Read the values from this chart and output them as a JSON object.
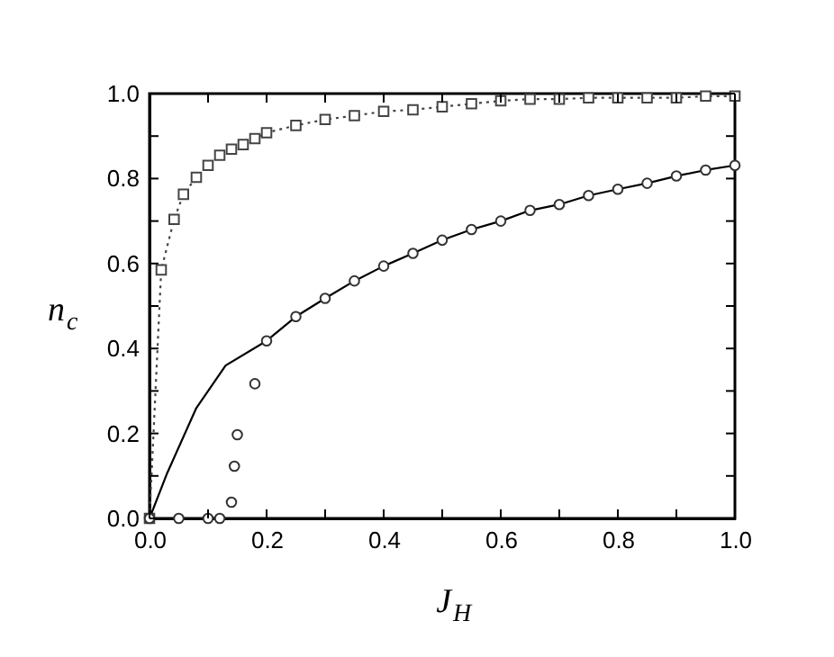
{
  "chart_data": {
    "type": "line",
    "xlabel": "J$_{H}$",
    "ylabel": "n$_{c}$",
    "xlim": [
      0,
      1.0
    ],
    "ylim": [
      0,
      1.0
    ],
    "xticks": [
      {
        "value": 0,
        "label": "0.0"
      },
      {
        "value": 0.1,
        "label": null
      },
      {
        "value": 0.2,
        "label": "0.2"
      },
      {
        "value": 0.3,
        "label": null
      },
      {
        "value": 0.4,
        "label": "0.4"
      },
      {
        "value": 0.5,
        "label": null
      },
      {
        "value": 0.6,
        "label": "0.6"
      },
      {
        "value": 0.7,
        "label": null
      },
      {
        "value": 0.8,
        "label": "0.8"
      },
      {
        "value": 0.9,
        "label": null
      },
      {
        "value": 1.0,
        "label": "1.0"
      }
    ],
    "yticks": [
      {
        "value": 0,
        "label": "0.0"
      },
      {
        "value": 0.1,
        "label": null
      },
      {
        "value": 0.2,
        "label": "0.2"
      },
      {
        "value": 0.3,
        "label": null
      },
      {
        "value": 0.4,
        "label": "0.4"
      },
      {
        "value": 0.5,
        "label": null
      },
      {
        "value": 0.6,
        "label": "0.6"
      },
      {
        "value": 0.7,
        "label": null
      },
      {
        "value": 0.8,
        "label": "0.8"
      },
      {
        "value": 0.9,
        "label": null
      },
      {
        "value": 1.0,
        "label": "1.0"
      }
    ],
    "grid": false,
    "series": [
      {
        "type": "line",
        "marker": "square",
        "line_style": "dotted",
        "color": "#444444",
        "x": [
          0,
          0.02,
          0.042,
          0.058,
          0.08,
          0.1,
          0.12,
          0.14,
          0.16,
          0.18,
          0.2,
          0.25,
          0.3,
          0.35,
          0.4,
          0.45,
          0.5,
          0.55,
          0.6,
          0.65,
          0.7,
          0.75,
          0.8,
          0.85,
          0.9,
          0.95,
          1.0
        ],
        "values": [
          0,
          0.585,
          0.704,
          0.763,
          0.803,
          0.831,
          0.855,
          0.869,
          0.88,
          0.894,
          0.908,
          0.925,
          0.939,
          0.948,
          0.958,
          0.962,
          0.969,
          0.976,
          0.983,
          0.987,
          0.987,
          0.99,
          0.99,
          0.99,
          0.99,
          0.994,
          0.994
        ]
      },
      {
        "type": "line",
        "marker": "none",
        "line_style": "solid",
        "color": "#000000",
        "x": [
          0,
          0.03,
          0.08,
          0.13,
          0.2,
          0.25,
          0.3,
          0.35,
          0.4,
          0.45,
          0.5,
          0.55,
          0.6,
          0.65,
          0.7,
          0.75,
          0.8,
          0.85,
          0.9,
          0.95,
          1.0
        ],
        "values": [
          0,
          0.106,
          0.26,
          0.36,
          0.418,
          0.475,
          0.518,
          0.559,
          0.594,
          0.624,
          0.655,
          0.68,
          0.7,
          0.725,
          0.739,
          0.76,
          0.775,
          0.789,
          0.806,
          0.82,
          0.831
        ]
      },
      {
        "type": "scatter",
        "marker": "circle",
        "color": "#333333",
        "x": [
          0,
          0.05,
          0.1,
          0.12,
          0.14,
          0.145,
          0.15,
          0.18,
          0.2,
          0.25,
          0.3,
          0.35,
          0.4,
          0.45,
          0.5,
          0.55,
          0.6,
          0.65,
          0.7,
          0.75,
          0.8,
          0.85,
          0.9,
          0.95,
          1.0
        ],
        "values": [
          0,
          0,
          0,
          0,
          0.038,
          0.123,
          0.197,
          0.317,
          0.418,
          0.475,
          0.518,
          0.559,
          0.594,
          0.624,
          0.655,
          0.68,
          0.7,
          0.725,
          0.739,
          0.76,
          0.775,
          0.789,
          0.806,
          0.82,
          0.831
        ]
      }
    ]
  }
}
